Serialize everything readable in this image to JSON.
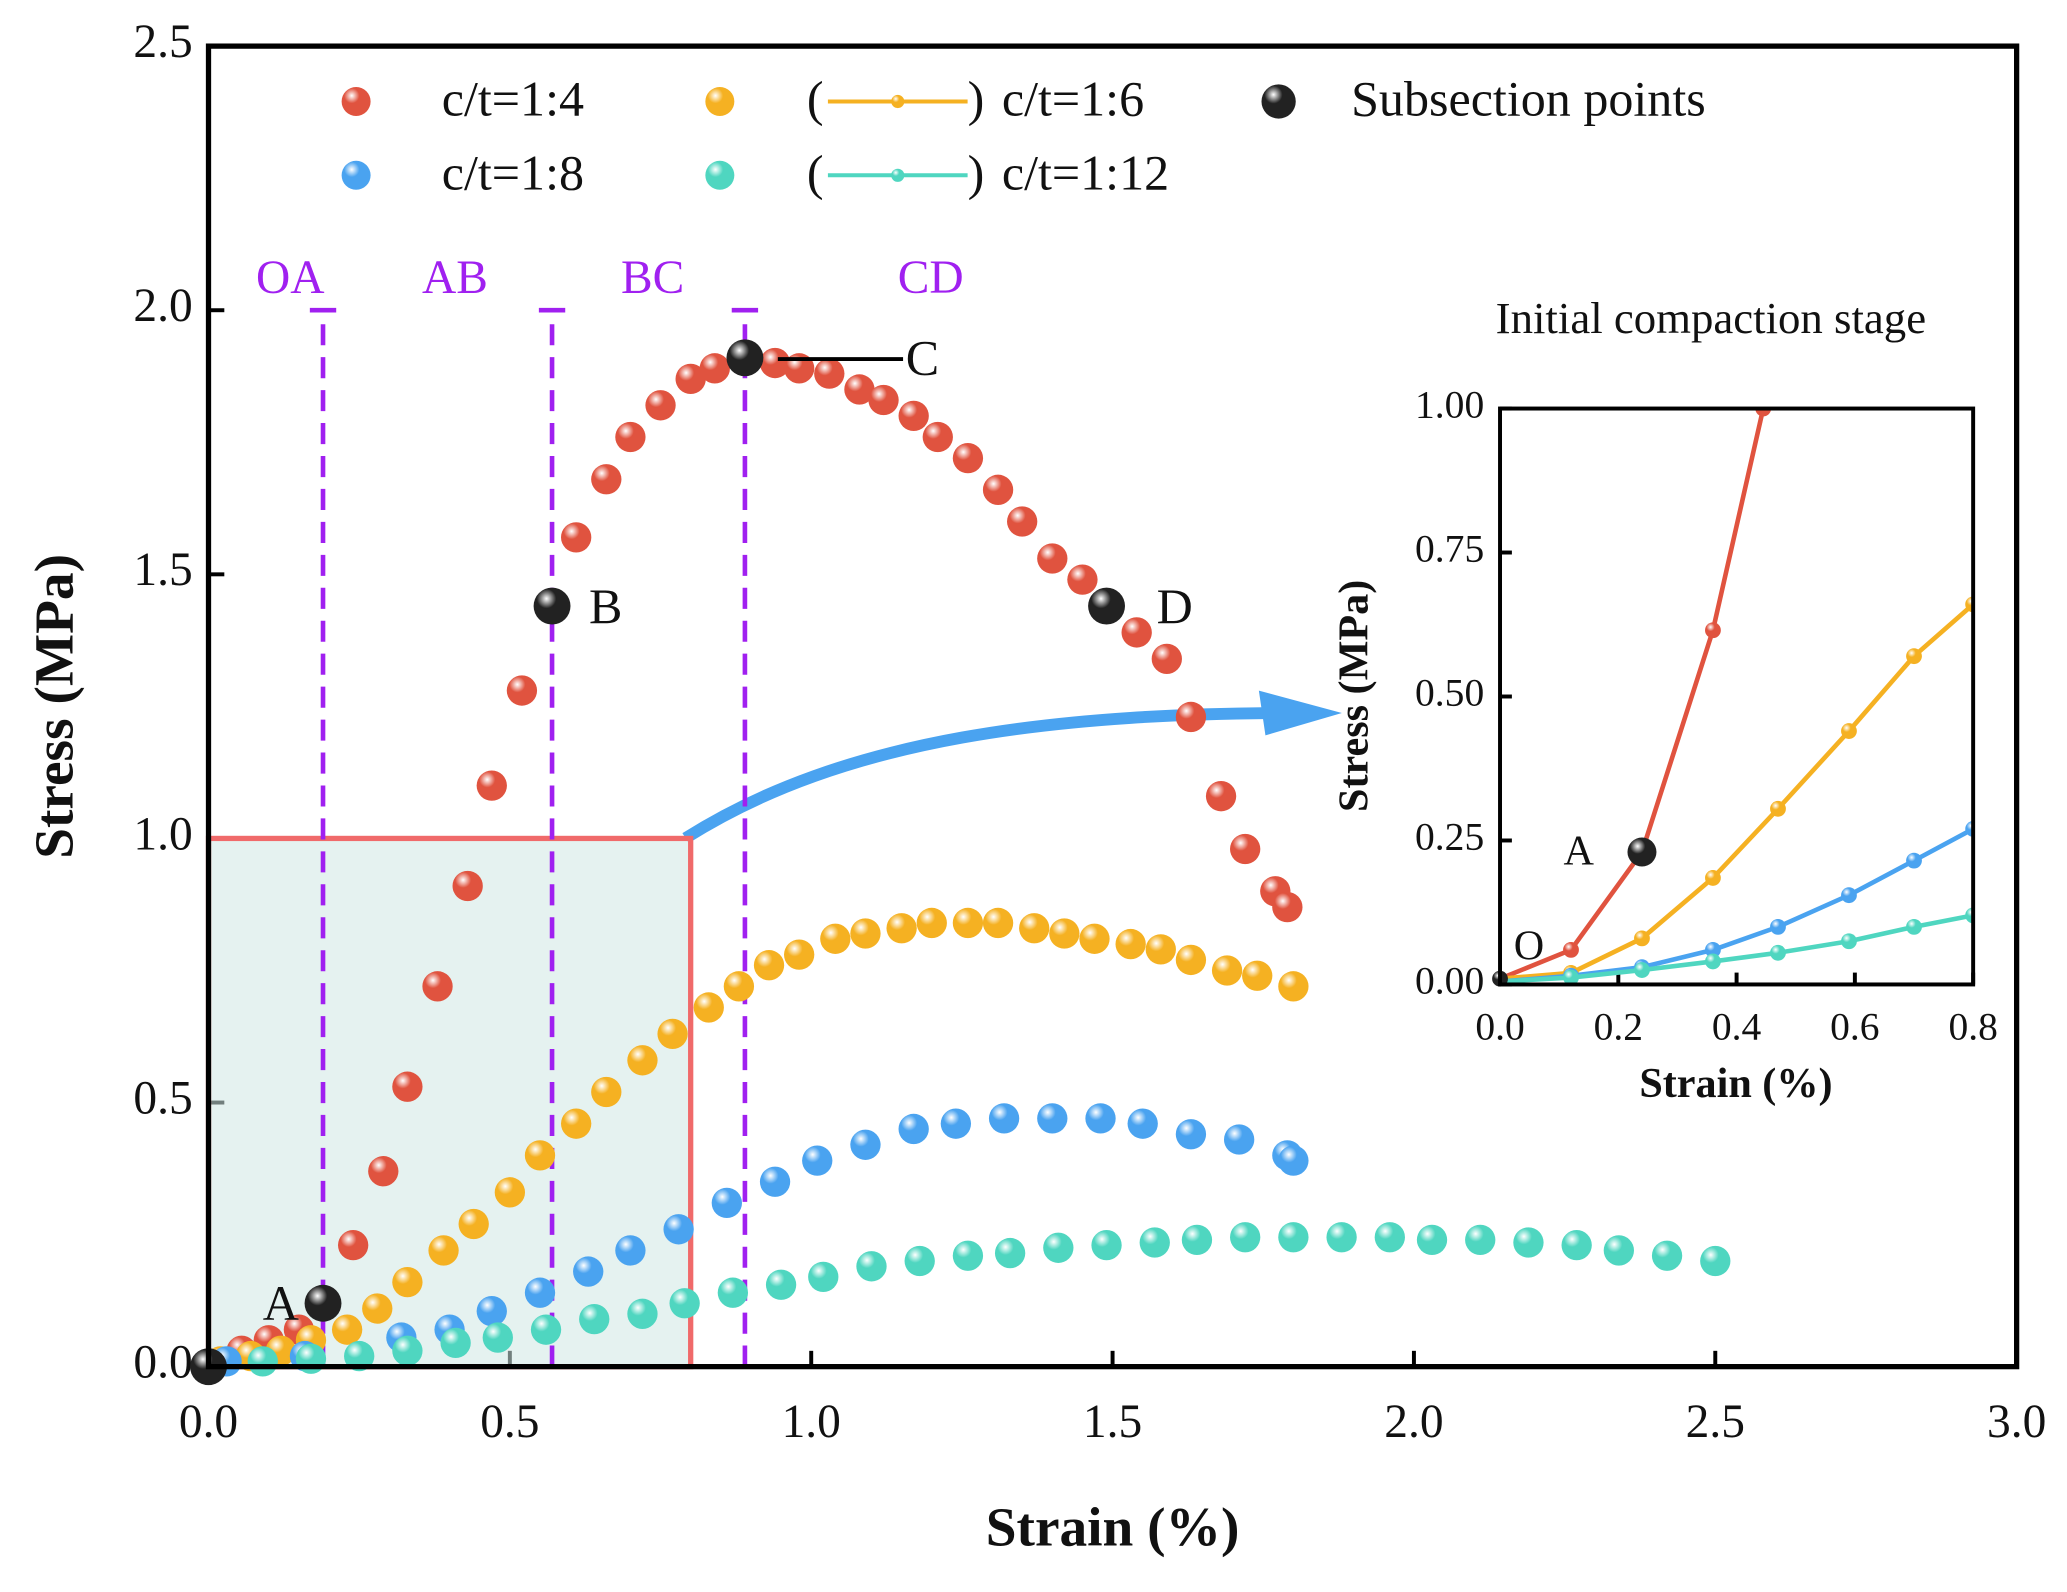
{
  "chart_data": [
    {
      "type": "scatter",
      "xlabel": "Strain (%)",
      "ylabel": "Stress (MPa)",
      "xlim": [
        0,
        3.0
      ],
      "ylim": [
        0,
        2.5
      ],
      "xticks": [
        {
          "value": 0,
          "label": "0.0"
        },
        {
          "value": 0.5,
          "label": "0.5"
        },
        {
          "value": 1.0,
          "label": "1.0"
        },
        {
          "value": 1.5,
          "label": "1.5"
        },
        {
          "value": 2.0,
          "label": "2.0"
        },
        {
          "value": 2.5,
          "label": "2.5"
        },
        {
          "value": 3.0,
          "label": "3.0"
        }
      ],
      "yticks": [
        {
          "value": 0,
          "label": "0.0"
        },
        {
          "value": 0.5,
          "label": "0.5"
        },
        {
          "value": 1.0,
          "label": "1.0"
        },
        {
          "value": 1.5,
          "label": "1.5"
        },
        {
          "value": 2.0,
          "label": "2.0"
        },
        {
          "value": 2.5,
          "label": "2.5"
        }
      ],
      "legend_bracket": [
        "(",
        ")"
      ],
      "series": [
        {
          "name": "c/t=1:4",
          "color": "#e0533f",
          "legend_line": false,
          "x": [
            0.055,
            0.1,
            0.15,
            0.24,
            0.29,
            0.33,
            0.38,
            0.43,
            0.47,
            0.52,
            0.61,
            0.66,
            0.7,
            0.75,
            0.8,
            0.84,
            0.94,
            0.98,
            1.03,
            1.08,
            1.12,
            1.17,
            1.21,
            1.26,
            1.31,
            1.35,
            1.4,
            1.45,
            1.54,
            1.59,
            1.63,
            1.68,
            1.72,
            1.77,
            1.79
          ],
          "values": [
            0.03,
            0.05,
            0.07,
            0.23,
            0.37,
            0.53,
            0.72,
            0.91,
            1.1,
            1.28,
            1.57,
            1.68,
            1.76,
            1.82,
            1.87,
            1.89,
            1.9,
            1.89,
            1.88,
            1.85,
            1.83,
            1.8,
            1.76,
            1.72,
            1.66,
            1.6,
            1.53,
            1.49,
            1.39,
            1.34,
            1.23,
            1.08,
            0.98,
            0.9,
            0.87
          ]
        },
        {
          "name": "c/t=1:6",
          "color": "#f5b122",
          "legend_line": true,
          "x": [
            0.02,
            0.07,
            0.12,
            0.17,
            0.23,
            0.28,
            0.33,
            0.39,
            0.44,
            0.5,
            0.55,
            0.61,
            0.66,
            0.72,
            0.77,
            0.83,
            0.88,
            0.93,
            0.98,
            1.04,
            1.09,
            1.15,
            1.2,
            1.26,
            1.31,
            1.37,
            1.42,
            1.47,
            1.53,
            1.58,
            1.63,
            1.69,
            1.74,
            1.8
          ],
          "values": [
            0.01,
            0.02,
            0.03,
            0.05,
            0.07,
            0.11,
            0.16,
            0.22,
            0.27,
            0.33,
            0.4,
            0.46,
            0.52,
            0.58,
            0.63,
            0.68,
            0.72,
            0.76,
            0.78,
            0.81,
            0.82,
            0.83,
            0.84,
            0.84,
            0.84,
            0.83,
            0.82,
            0.81,
            0.8,
            0.79,
            0.77,
            0.75,
            0.74,
            0.72
          ]
        },
        {
          "name": "c/t=1:8",
          "color": "#4aa3f0",
          "legend_line": false,
          "x": [
            0.03,
            0.16,
            0.32,
            0.4,
            0.47,
            0.55,
            0.63,
            0.7,
            0.78,
            0.86,
            0.94,
            1.01,
            1.09,
            1.17,
            1.24,
            1.32,
            1.4,
            1.48,
            1.55,
            1.63,
            1.71,
            1.79,
            1.8
          ],
          "values": [
            0.01,
            0.02,
            0.055,
            0.07,
            0.105,
            0.14,
            0.18,
            0.22,
            0.26,
            0.31,
            0.35,
            0.39,
            0.42,
            0.45,
            0.46,
            0.47,
            0.47,
            0.47,
            0.46,
            0.44,
            0.43,
            0.4,
            0.39
          ]
        },
        {
          "name": "c/t=1:12",
          "color": "#4fd6c0",
          "legend_line": true,
          "x": [
            0.09,
            0.17,
            0.25,
            0.33,
            0.41,
            0.48,
            0.56,
            0.64,
            0.72,
            0.79,
            0.87,
            0.95,
            1.02,
            1.1,
            1.18,
            1.26,
            1.33,
            1.41,
            1.49,
            1.57,
            1.64,
            1.72,
            1.8,
            1.88,
            1.96,
            2.03,
            2.11,
            2.19,
            2.27,
            2.34,
            2.42,
            2.5
          ],
          "values": [
            0.01,
            0.015,
            0.02,
            0.03,
            0.045,
            0.055,
            0.07,
            0.09,
            0.1,
            0.12,
            0.14,
            0.155,
            0.17,
            0.19,
            0.2,
            0.21,
            0.215,
            0.225,
            0.23,
            0.235,
            0.24,
            0.245,
            0.245,
            0.245,
            0.245,
            0.24,
            0.24,
            0.235,
            0.23,
            0.22,
            0.21,
            0.2
          ]
        },
        {
          "name": "Subsection points",
          "color": "#222222",
          "legend_line": false,
          "x": [
            0,
            0.19,
            0.57,
            0.89,
            1.49
          ],
          "values": [
            0,
            0.12,
            1.44,
            1.91,
            1.44
          ]
        }
      ],
      "point_labels": [
        {
          "text": "A",
          "point": 1
        },
        {
          "text": "B",
          "point": 2
        },
        {
          "text": "C",
          "point": 3
        },
        {
          "text": "D",
          "point": 4
        }
      ],
      "stages": {
        "labels": [
          "OA",
          "AB",
          "BC",
          "CD"
        ],
        "boundaries": [
          0.19,
          0.57,
          0.89
        ],
        "top": 2.0
      },
      "highlight": {
        "xlim": [
          0,
          0.8
        ],
        "ylim": [
          0,
          1.0
        ]
      }
    },
    {
      "type": "line",
      "title": "Initial compaction stage",
      "xlabel": "Strain (%)",
      "ylabel": "Stress (MPa)",
      "xlim": [
        0,
        0.8
      ],
      "ylim": [
        0,
        1.0
      ],
      "xticks": [
        {
          "value": 0,
          "label": "0.0"
        },
        {
          "value": 0.2,
          "label": "0.2"
        },
        {
          "value": 0.4,
          "label": "0.4"
        },
        {
          "value": 0.6,
          "label": "0.6"
        },
        {
          "value": 0.8,
          "label": "0.8"
        }
      ],
      "yticks": [
        {
          "value": 0,
          "label": "0.00"
        },
        {
          "value": 0.25,
          "label": "0.25"
        },
        {
          "value": 0.5,
          "label": "0.50"
        },
        {
          "value": 0.75,
          "label": "0.75"
        },
        {
          "value": 1.0,
          "label": "1.00"
        }
      ],
      "series": [
        {
          "color": "#e0533f",
          "x": [
            0,
            0.12,
            0.24,
            0.36,
            0.445
          ],
          "values": [
            0.01,
            0.06,
            0.23,
            0.615,
            1.0
          ]
        },
        {
          "color": "#f5b122",
          "x": [
            0,
            0.12,
            0.24,
            0.36,
            0.47,
            0.59,
            0.7,
            0.8
          ],
          "values": [
            0.01,
            0.02,
            0.08,
            0.185,
            0.305,
            0.44,
            0.57,
            0.66
          ]
        },
        {
          "color": "#4aa3f0",
          "x": [
            0,
            0.12,
            0.24,
            0.36,
            0.47,
            0.59,
            0.7,
            0.8
          ],
          "values": [
            0.005,
            0.015,
            0.03,
            0.06,
            0.1,
            0.155,
            0.215,
            0.27
          ]
        },
        {
          "color": "#4fd6c0",
          "x": [
            0,
            0.12,
            0.24,
            0.36,
            0.47,
            0.59,
            0.7,
            0.8
          ],
          "values": [
            0.005,
            0.012,
            0.025,
            0.04,
            0.055,
            0.075,
            0.1,
            0.12
          ]
        }
      ],
      "points": {
        "labels": [
          "O",
          "A"
        ],
        "x": [
          0,
          0.24
        ],
        "values": [
          0.01,
          0.23
        ],
        "color": "#222222"
      }
    }
  ]
}
